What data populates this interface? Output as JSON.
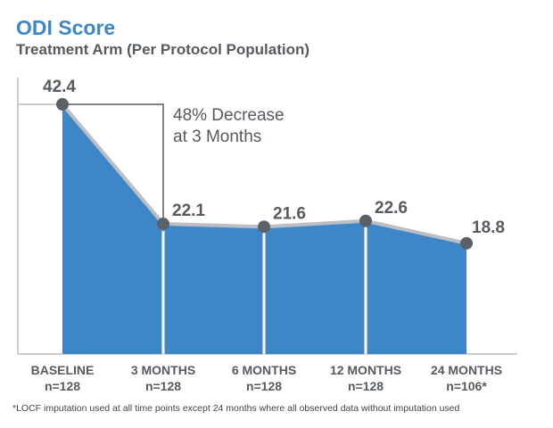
{
  "title": "ODI Score",
  "subtitle": "Treatment Arm (Per Protocol Population)",
  "annotation": [
    "48% Decrease",
    "at 3 Months"
  ],
  "footnote": "*LOCF imputation used at all time points except 24 months where all observed data without imputation used",
  "colors": {
    "fill": "#3d87c8",
    "line": "#bdbdc4",
    "marker": "#5b6167",
    "title": "#3d87c8",
    "text": "#555b61"
  },
  "chart_data": {
    "type": "area",
    "title": "ODI Score",
    "subtitle": "Treatment Arm (Per Protocol Population)",
    "categories": [
      "BASELINE",
      "3 MONTHS",
      "6 MONTHS",
      "12 MONTHS",
      "24 MONTHS"
    ],
    "n_labels": [
      "n=128",
      "n=128",
      "n=128",
      "n=128",
      "n=106*"
    ],
    "values": [
      42.4,
      22.1,
      21.6,
      22.6,
      18.8
    ],
    "value_labels": [
      "42.4",
      "22.1",
      "21.6",
      "22.6",
      "18.8"
    ],
    "ylim": [
      0,
      45
    ],
    "grid": false,
    "legend": "none"
  }
}
